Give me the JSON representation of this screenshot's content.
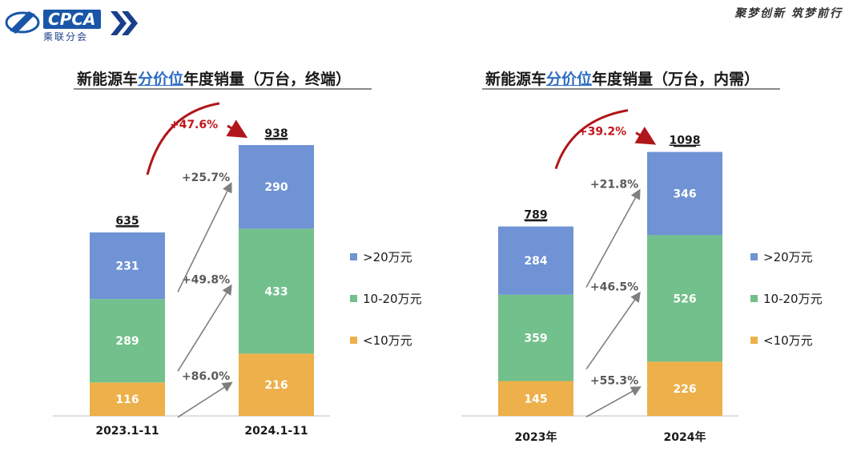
{
  "header": {
    "logo_text": "CPCA",
    "logo_sub": "乘联分会",
    "slogan": "聚梦创新 筑梦前行"
  },
  "colors": {
    "high": "#6f93d4",
    "mid": "#72c08b",
    "low": "#edb04a",
    "arrow": "#7f7f7f",
    "total_arrow": "#b0161a"
  },
  "chart_data": [
    {
      "type": "bar",
      "title_pre": "新能源车",
      "title_hl": "分价位",
      "title_post": "年度销量（万台，终端）",
      "categories": [
        "2023.1-11",
        "2024.1-11"
      ],
      "series": [
        {
          "name": "<10万元",
          "values": [
            116,
            216
          ]
        },
        {
          "name": "10-20万元",
          "values": [
            289,
            433
          ]
        },
        {
          "name": ">20万元",
          "values": [
            231,
            290
          ]
        }
      ],
      "totals": [
        635,
        938
      ],
      "growth": [
        "+86.0%",
        "+49.8%",
        "+25.7%"
      ],
      "total_growth": "+47.6%",
      "legend": [
        ">20万元",
        "10-20万元",
        "<10万元"
      ]
    },
    {
      "type": "bar",
      "title_pre": "新能源车",
      "title_hl": "分价位",
      "title_post": "年度销量（万台，内需）",
      "categories": [
        "2023年",
        "2024年"
      ],
      "series": [
        {
          "name": "<10万元",
          "values": [
            145,
            226
          ]
        },
        {
          "name": "10-20万元",
          "values": [
            359,
            526
          ]
        },
        {
          "name": ">20万元",
          "values": [
            284,
            346
          ]
        }
      ],
      "totals": [
        789,
        1098
      ],
      "growth": [
        "+55.3%",
        "+46.5%",
        "+21.8%"
      ],
      "total_growth": "+39.2%",
      "legend": [
        ">20万元",
        "10-20万元",
        "<10万元"
      ]
    }
  ]
}
